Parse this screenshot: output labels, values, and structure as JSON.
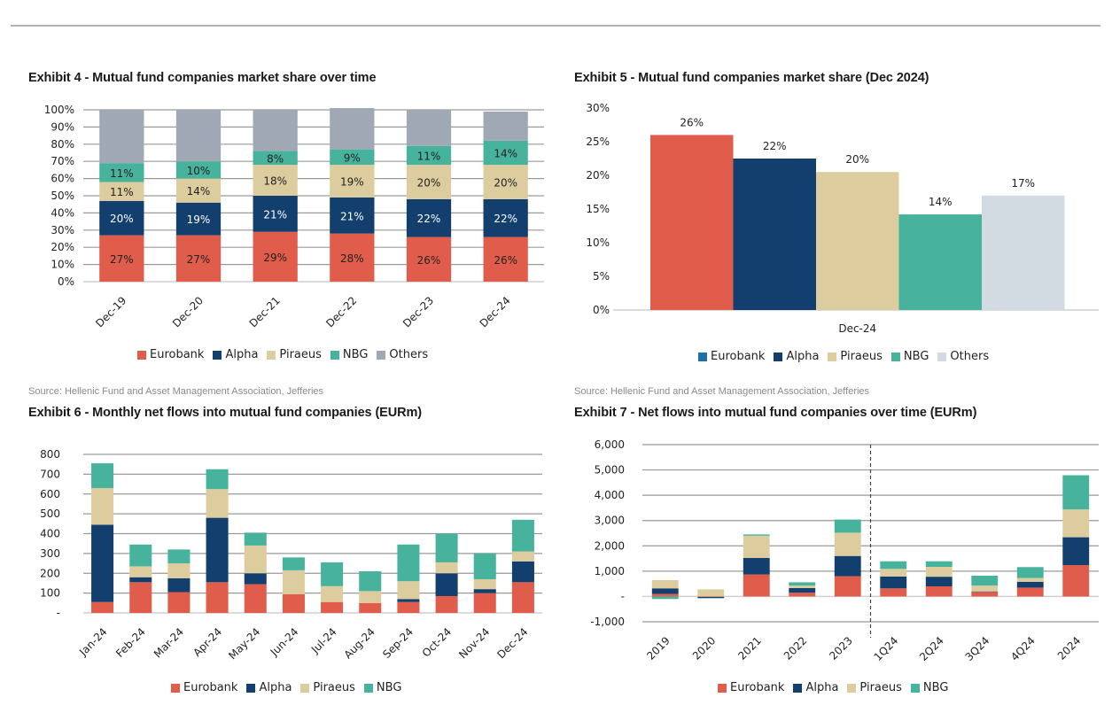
{
  "colors": {
    "Eurobank": "#e05c4b",
    "Alpha": "#123f6e",
    "Piraeus": "#dccc9e",
    "NBG": "#47b39d",
    "Others": "#a0a9b3",
    "Others_light": "#d1dbe1",
    "Eurobank_legend_ex5": "#1f6fa8",
    "grid": "#9a9a9a",
    "axis": "#d0d0d0"
  },
  "sources": {
    "left": "Source: Hellenic Fund and Asset Management Association, Jefferies",
    "right": "Source: Hellenic Fund and Asset Management Association, Jefferies"
  },
  "chart_data": [
    {
      "id": "exhibit4",
      "type": "bar",
      "stacked": true,
      "title": "Exhibit 4 - Mutual fund companies market share over time",
      "categories": [
        "Dec-19",
        "Dec-20",
        "Dec-21",
        "Dec-22",
        "Dec-23",
        "Dec-24"
      ],
      "series": [
        {
          "name": "Eurobank",
          "values": [
            27,
            27,
            29,
            28,
            26,
            26
          ],
          "labels": [
            "27%",
            "27%",
            "29%",
            "28%",
            "26%",
            "26%"
          ]
        },
        {
          "name": "Alpha",
          "values": [
            20,
            19,
            21,
            21,
            22,
            22
          ],
          "labels": [
            "20%",
            "19%",
            "21%",
            "21%",
            "22%",
            "22%"
          ]
        },
        {
          "name": "Piraeus",
          "values": [
            11,
            14,
            18,
            19,
            20,
            20
          ],
          "labels": [
            "11%",
            "14%",
            "18%",
            "19%",
            "20%",
            "20%"
          ]
        },
        {
          "name": "NBG",
          "values": [
            11,
            10,
            8,
            9,
            11,
            14
          ],
          "labels": [
            "11%",
            "10%",
            "8%",
            "9%",
            "11%",
            "14%"
          ]
        },
        {
          "name": "Others",
          "values": [
            31,
            30,
            24,
            24,
            21,
            17
          ],
          "labels": []
        }
      ],
      "yticks": [
        "0%",
        "10%",
        "20%",
        "30%",
        "40%",
        "50%",
        "60%",
        "70%",
        "80%",
        "90%",
        "100%"
      ],
      "ylim": [
        0,
        100
      ],
      "grid": true,
      "legend": [
        "Eurobank",
        "Alpha",
        "Piraeus",
        "NBG",
        "Others"
      ],
      "legend_position": "bottom"
    },
    {
      "id": "exhibit5",
      "type": "bar",
      "title": "Exhibit 5 - Mutual fund companies market share (Dec 2024)",
      "categories": [
        "Dec-24"
      ],
      "series": [
        {
          "name": "Eurobank",
          "values": [
            26
          ],
          "labels": [
            "26%"
          ]
        },
        {
          "name": "Alpha",
          "values": [
            22.5
          ],
          "labels": [
            "22%"
          ]
        },
        {
          "name": "Piraeus",
          "values": [
            20.5
          ],
          "labels": [
            "20%"
          ]
        },
        {
          "name": "NBG",
          "values": [
            14.2
          ],
          "labels": [
            "14%"
          ]
        },
        {
          "name": "Others",
          "values": [
            17
          ],
          "labels": [
            "17%"
          ]
        }
      ],
      "xlabel_text": "Dec-24",
      "yticks": [
        "0%",
        "5%",
        "10%",
        "15%",
        "20%",
        "25%",
        "30%"
      ],
      "ylim": [
        0,
        30
      ],
      "grid": false,
      "legend": [
        "Eurobank",
        "Alpha",
        "Piraeus",
        "NBG",
        "Others"
      ],
      "legend_position": "bottom"
    },
    {
      "id": "exhibit6",
      "type": "bar",
      "stacked": true,
      "title": "Exhibit 6 - Monthly net flows into mutual fund companies (EURm)",
      "categories": [
        "Jan-24",
        "Feb-24",
        "Mar-24",
        "Apr-24",
        "May-24",
        "Jun-24",
        "Jul-24",
        "Aug-24",
        "Sep-24",
        "Oct-24",
        "Nov-24",
        "Dec-24"
      ],
      "series": [
        {
          "name": "Eurobank",
          "values": [
            55,
            155,
            105,
            155,
            145,
            95,
            55,
            50,
            55,
            85,
            100,
            155
          ]
        },
        {
          "name": "Alpha",
          "values": [
            390,
            25,
            70,
            325,
            55,
            0,
            0,
            0,
            15,
            115,
            20,
            105
          ]
        },
        {
          "name": "Piraeus",
          "values": [
            185,
            55,
            75,
            145,
            140,
            120,
            80,
            60,
            90,
            55,
            50,
            50
          ]
        },
        {
          "name": "NBG",
          "values": [
            125,
            110,
            70,
            100,
            65,
            65,
            120,
            100,
            185,
            145,
            130,
            160
          ]
        }
      ],
      "yticks": [
        "-",
        "100",
        "200",
        "300",
        "400",
        "500",
        "600",
        "700",
        "800"
      ],
      "ylim": [
        0,
        800
      ],
      "grid": true,
      "legend": [
        "Eurobank",
        "Alpha",
        "Piraeus",
        "NBG"
      ],
      "legend_position": "bottom"
    },
    {
      "id": "exhibit7",
      "type": "bar",
      "stacked": true,
      "title": "Exhibit 7 - Net flows into mutual fund companies over time (EURm)",
      "categories": [
        "2019",
        "2020",
        "2021",
        "2022",
        "2023",
        "1Q24",
        "2Q24",
        "3Q24",
        "4Q24",
        "2024"
      ],
      "series": [
        {
          "name": "Eurobank",
          "values": [
            100,
            -20,
            870,
            150,
            800,
            320,
            400,
            180,
            350,
            1240
          ]
        },
        {
          "name": "Alpha",
          "values": [
            220,
            -40,
            650,
            180,
            800,
            470,
            380,
            20,
            230,
            1100
          ]
        },
        {
          "name": "Piraeus",
          "values": [
            330,
            280,
            880,
            100,
            920,
            300,
            390,
            230,
            150,
            1100
          ]
        },
        {
          "name": "NBG",
          "values": [
            -100,
            -10,
            50,
            130,
            520,
            300,
            220,
            390,
            430,
            1350
          ]
        }
      ],
      "yticks": [
        "-1,000",
        "-",
        "1,000",
        "2,000",
        "3,000",
        "4,000",
        "5,000",
        "6,000"
      ],
      "ylim": [
        -1000,
        6000
      ],
      "divider_after": "2023",
      "grid": true,
      "legend": [
        "Eurobank",
        "Alpha",
        "Piraeus",
        "NBG"
      ],
      "legend_position": "bottom"
    }
  ]
}
